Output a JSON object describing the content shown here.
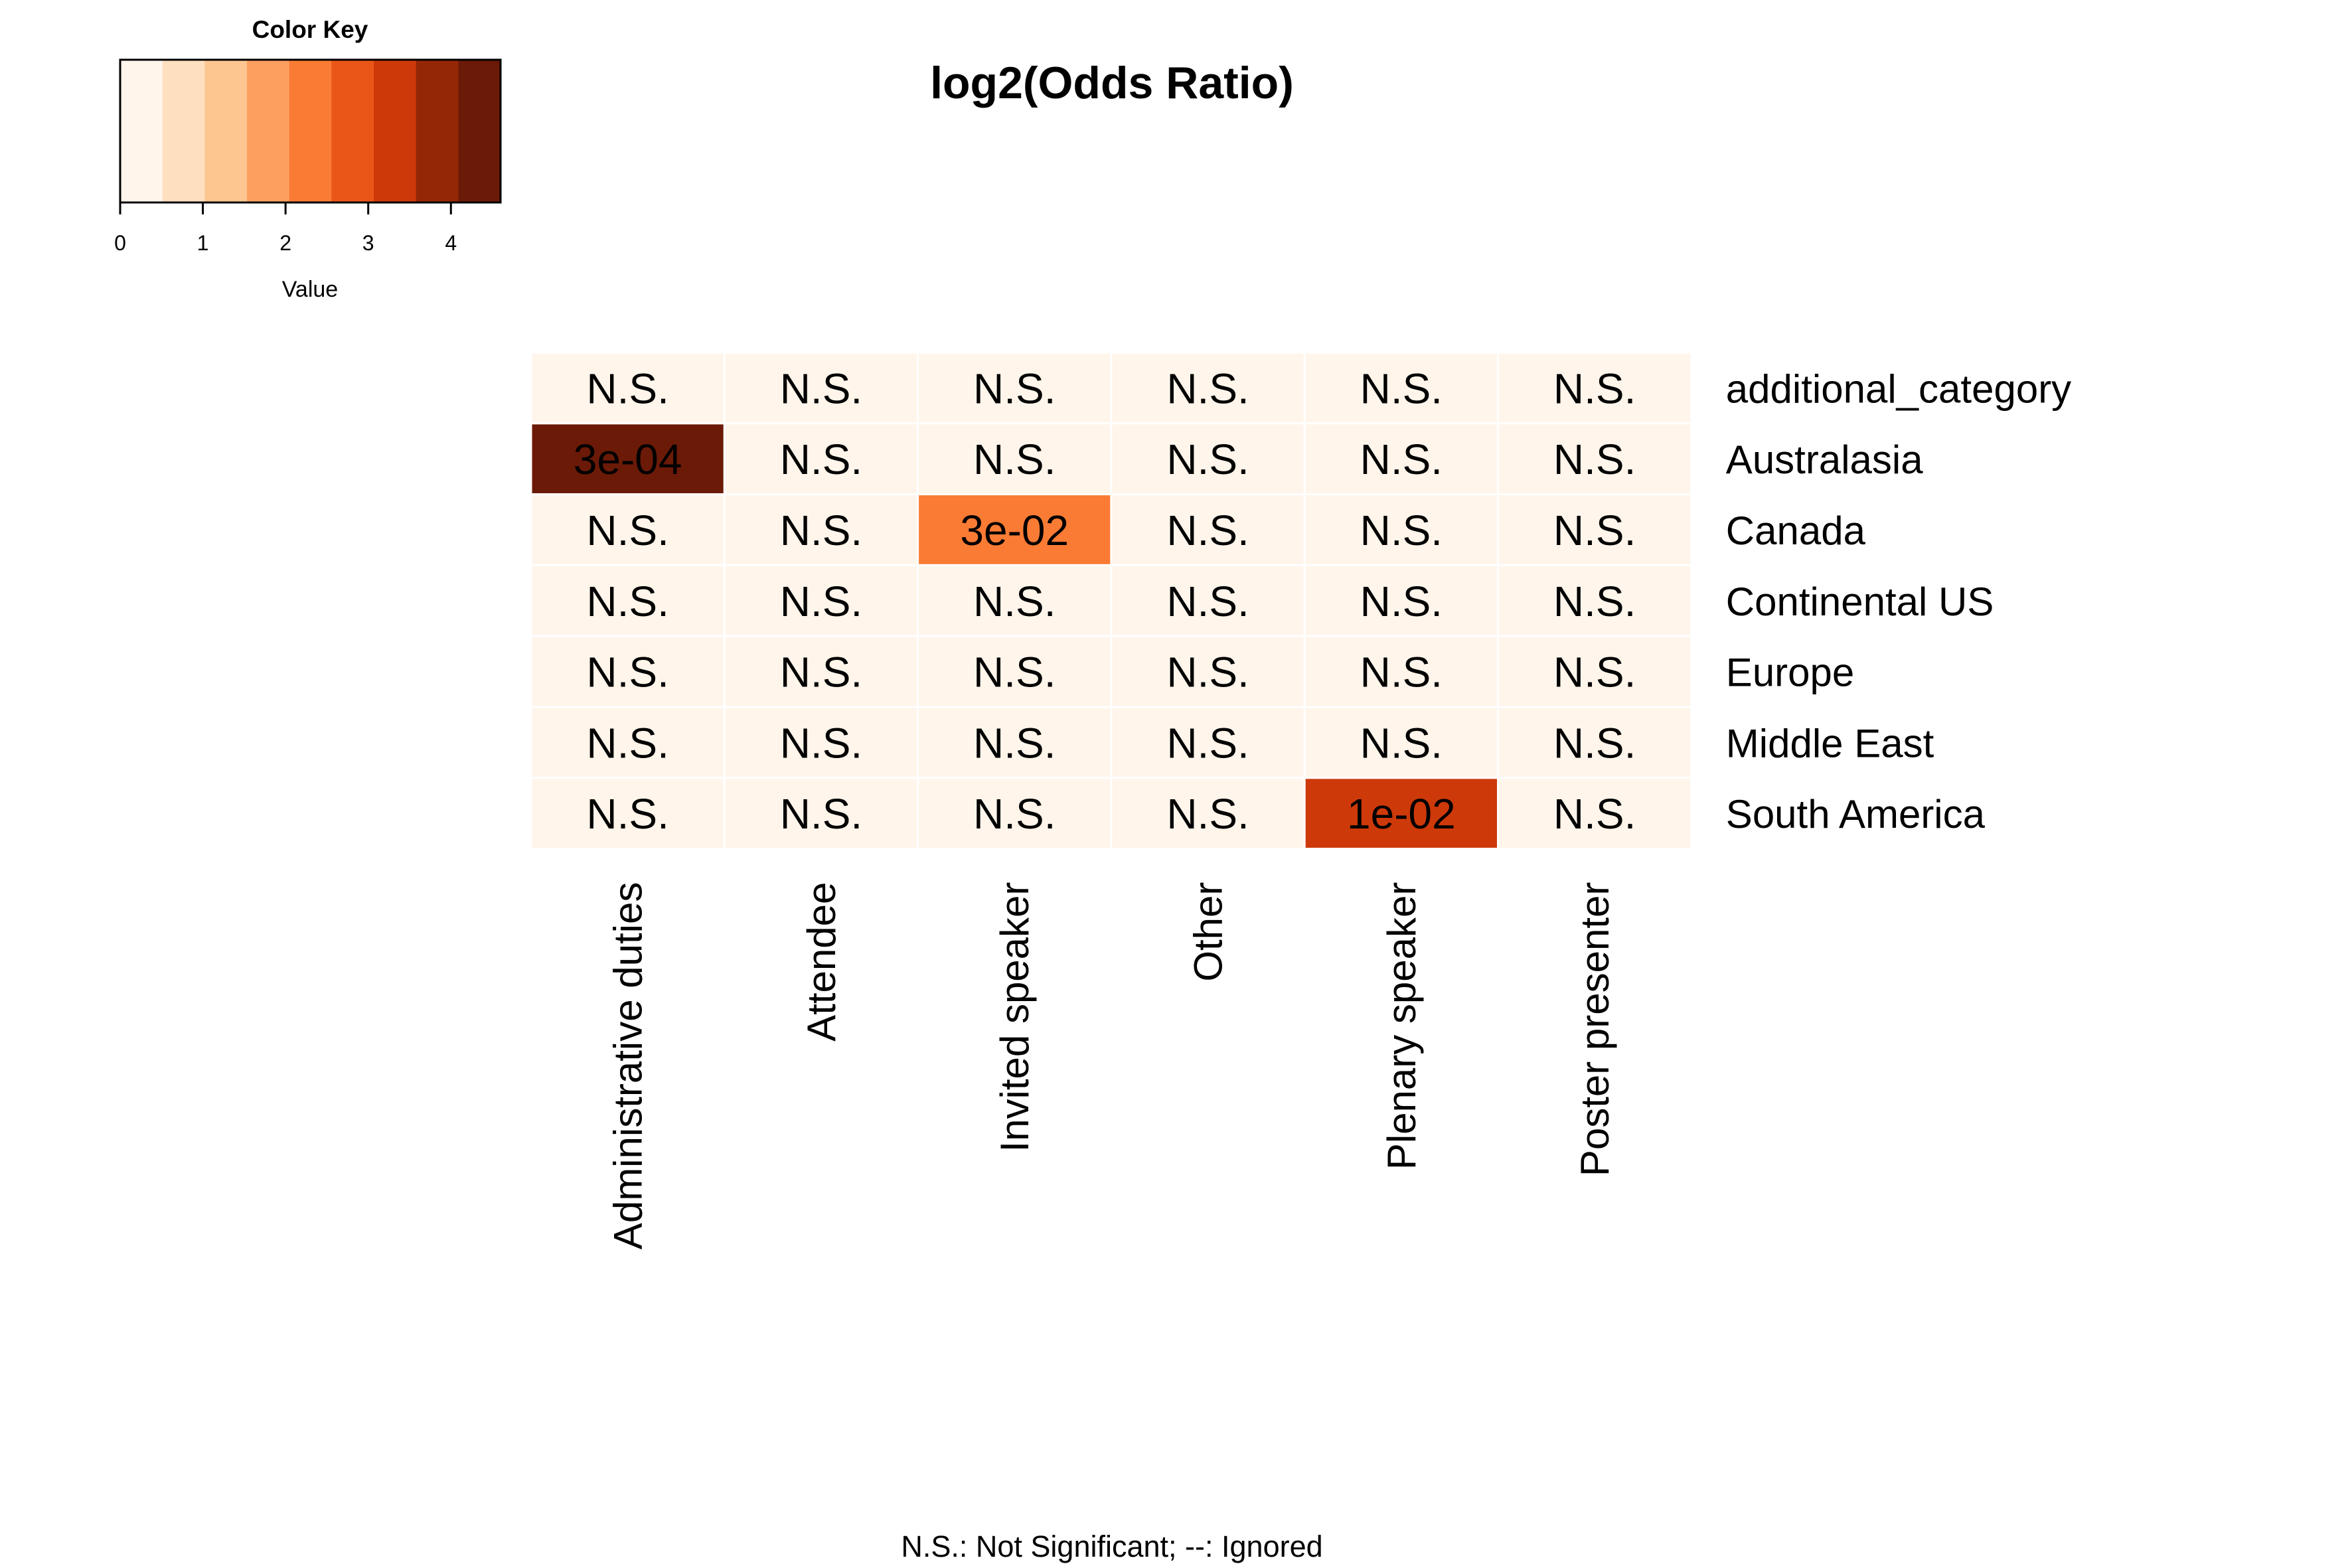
{
  "chart_data": {
    "type": "heatmap",
    "title": "log2(Odds Ratio)",
    "footnote": "N.S.: Not Significant; --: Ignored",
    "rows": [
      "additional_category",
      "Australasia",
      "Canada",
      "Continental US",
      "Europe",
      "Middle East",
      "South America"
    ],
    "columns": [
      "Administrative duties",
      "Attendee",
      "Invited speaker",
      "Other",
      "Plenary speaker",
      "Poster presenter"
    ],
    "values": [
      [
        0,
        0,
        0,
        0,
        0,
        0
      ],
      [
        4.5,
        0,
        0,
        0,
        0,
        0
      ],
      [
        0,
        0,
        2.3,
        0,
        0,
        0
      ],
      [
        0,
        0,
        0,
        0,
        0,
        0
      ],
      [
        0,
        0,
        0,
        0,
        0,
        0
      ],
      [
        0,
        0,
        0,
        0,
        0,
        0
      ],
      [
        0,
        0,
        0,
        0,
        3.3,
        0
      ]
    ],
    "cell_labels": [
      [
        "N.S.",
        "N.S.",
        "N.S.",
        "N.S.",
        "N.S.",
        "N.S."
      ],
      [
        "3e-04",
        "N.S.",
        "N.S.",
        "N.S.",
        "N.S.",
        "N.S."
      ],
      [
        "N.S.",
        "N.S.",
        "3e-02",
        "N.S.",
        "N.S.",
        "N.S."
      ],
      [
        "N.S.",
        "N.S.",
        "N.S.",
        "N.S.",
        "N.S.",
        "N.S."
      ],
      [
        "N.S.",
        "N.S.",
        "N.S.",
        "N.S.",
        "N.S.",
        "N.S."
      ],
      [
        "N.S.",
        "N.S.",
        "N.S.",
        "N.S.",
        "N.S.",
        "N.S."
      ],
      [
        "N.S.",
        "N.S.",
        "N.S.",
        "N.S.",
        "1e-02",
        "N.S."
      ]
    ],
    "color_key": {
      "title": "Color Key",
      "xlabel": "Value",
      "range": [
        0,
        4.6
      ],
      "ticks": [
        "0",
        "1",
        "2",
        "3",
        "4"
      ],
      "colors": [
        "#FFF5EB",
        "#FEE0C0",
        "#FDC691",
        "#FDA05F",
        "#FA7B34",
        "#EA5618",
        "#CE390A",
        "#942706",
        "#6B1A07"
      ]
    }
  }
}
